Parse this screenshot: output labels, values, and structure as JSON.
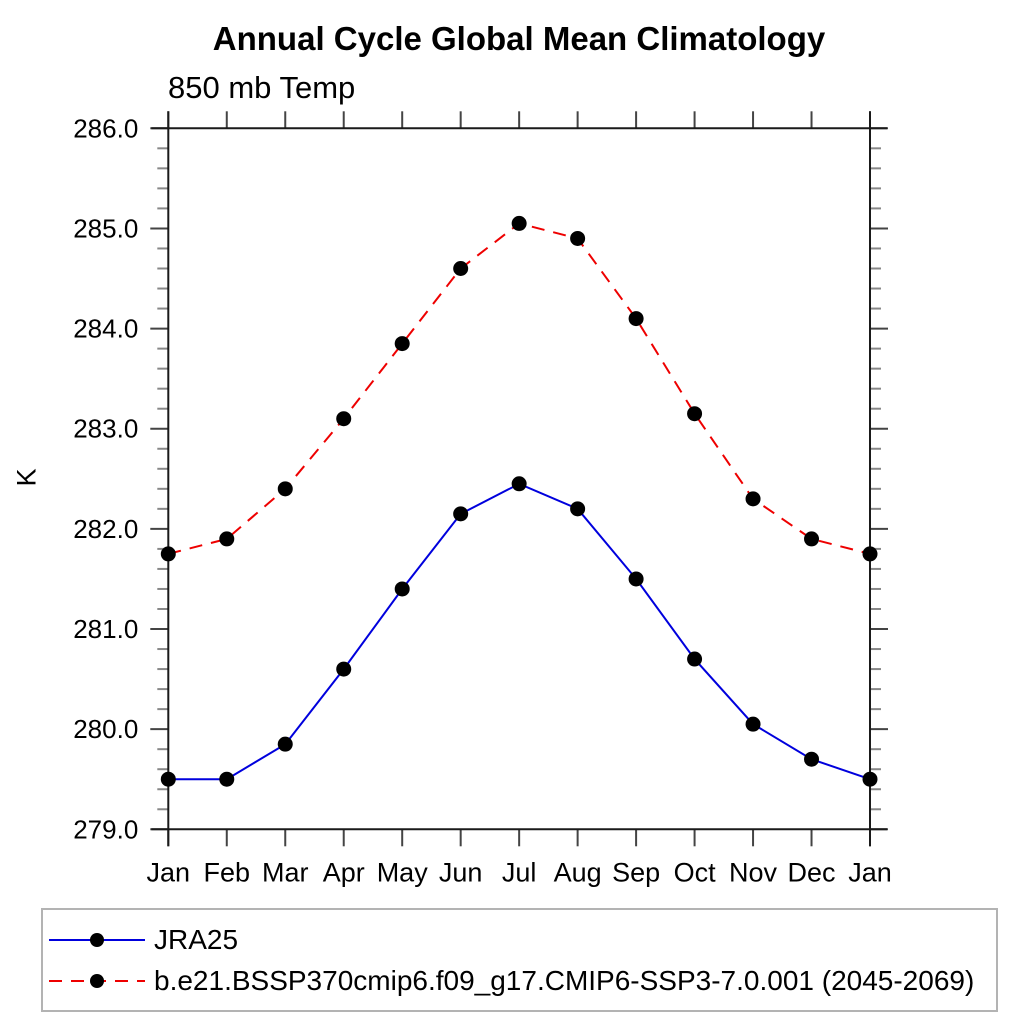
{
  "chart_data": {
    "type": "line",
    "title": "Annual Cycle Global Mean Climatology",
    "subtitle": "850 mb Temp",
    "ylabel": "K",
    "xlabel": "",
    "x": [
      "Jan",
      "Feb",
      "Mar",
      "Apr",
      "May",
      "Jun",
      "Jul",
      "Aug",
      "Sep",
      "Oct",
      "Nov",
      "Dec",
      "Jan"
    ],
    "x_tick_labels": [
      "Jan",
      "Feb",
      "Mar",
      "Apr",
      "May",
      "Jun",
      "Jul",
      "Aug",
      "Sep",
      "Oct",
      "Nov",
      "Dec",
      "Jan"
    ],
    "y_tick_labels": [
      "279.0",
      "280.0",
      "281.0",
      "282.0",
      "283.0",
      "284.0",
      "285.0",
      "286.0"
    ],
    "ylim": [
      279.0,
      286.0
    ],
    "y_major_step": 1.0,
    "y_minor_step": 0.2,
    "grid": false,
    "legend_position": "bottom-outside",
    "series": [
      {
        "name": "JRA25",
        "color": "#0000dd",
        "line_style": "solid",
        "marker": "filled-circle",
        "marker_color": "#000000",
        "values": [
          279.5,
          279.5,
          279.85,
          280.6,
          281.4,
          282.15,
          282.45,
          282.2,
          281.5,
          280.7,
          280.05,
          279.7,
          279.5
        ]
      },
      {
        "name": "b.e21.BSSP370cmip6.f09_g17.CMIP6-SSP3-7.0.001 (2045-2069)",
        "color": "#ee0000",
        "line_style": "dashed",
        "marker": "filled-circle",
        "marker_color": "#000000",
        "values": [
          281.75,
          281.9,
          282.4,
          283.1,
          283.85,
          284.6,
          285.05,
          284.9,
          284.1,
          283.15,
          282.3,
          281.9,
          281.75
        ]
      }
    ]
  },
  "colors": {
    "axis": "#1a1a1a",
    "major_tick": "#444444",
    "minor_tick": "#888888",
    "text": "#000000",
    "legend_border": "#b3b3b3",
    "background": "#ffffff"
  }
}
